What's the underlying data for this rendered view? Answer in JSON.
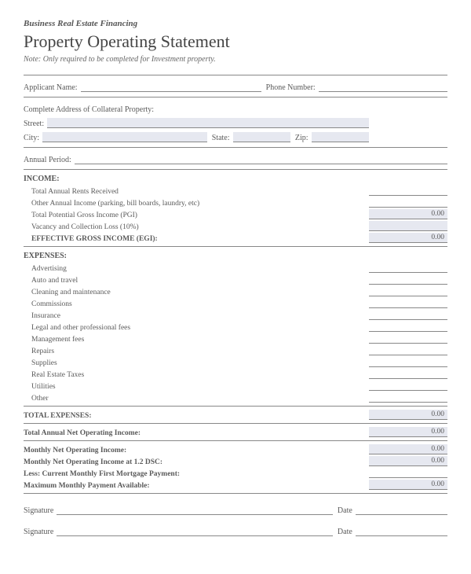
{
  "header": {
    "subtitle": "Business Real Estate Financing",
    "title": "Property Operating Statement",
    "note": "Note: Only required to be completed for Investment property."
  },
  "applicant": {
    "name_label": "Applicant Name:",
    "phone_label": "Phone Number:"
  },
  "address": {
    "heading": "Complete Address of Collateral Property:",
    "street_label": "Street:",
    "city_label": "City:",
    "state_label": "State:",
    "zip_label": "Zip:"
  },
  "annual_period_label": "Annual Period:",
  "income": {
    "heading": "INCOME:",
    "items": [
      "Total Annual Rents Received",
      "Other Annual Income (parking, bill boards, laundry, etc)",
      "Total Potential Gross Income (PGI)",
      "Vacancy and Collection Loss (10%)"
    ],
    "pgi_value": "0.00",
    "egi_label": "EFFECTIVE GROSS INCOME (EGI):",
    "egi_value": "0.00"
  },
  "expenses": {
    "heading": "EXPENSES:",
    "items": [
      "Advertising",
      "Auto and travel",
      "Cleaning and maintenance",
      "Commissions",
      "Insurance",
      "Legal and other professional fees",
      "Management fees",
      "Repairs",
      "Supplies",
      "Real Estate Taxes",
      "Utilities",
      "Other"
    ],
    "total_label": "TOTAL EXPENSES:",
    "total_value": "0.00"
  },
  "summary": {
    "annual_noi_label": "Total Annual Net Operating Income:",
    "annual_noi_value": "0.00",
    "monthly_noi_label": "Monthly Net Operating Income:",
    "monthly_noi_value": "0.00",
    "monthly_dsc_label": "Monthly Net Operating Income at 1.2 DSC:",
    "monthly_dsc_value": "0.00",
    "less_mortgage_label": "Less: Current Monthly First Mortgage Payment:",
    "max_payment_label": "Maximum Monthly Payment Available:",
    "max_payment_value": "0.00"
  },
  "signature": {
    "sig_label": "Signature",
    "date_label": "Date"
  },
  "colors": {
    "shaded_bg": "#e6e8f0",
    "text": "#5a5a5a",
    "line": "#888888"
  }
}
